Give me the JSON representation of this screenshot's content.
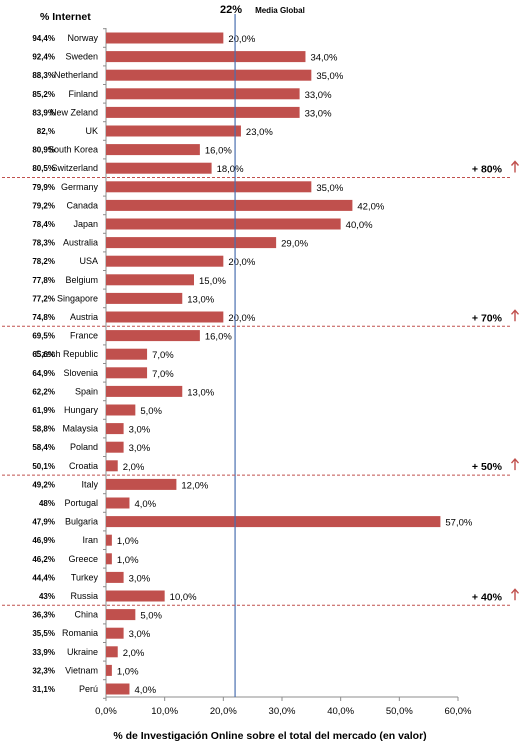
{
  "chart_data": {
    "type": "bar",
    "orientation": "horizontal",
    "header_label": "% Internet",
    "xlabel": "% de Investigación Online sobre el total del mercado (en valor)",
    "xlim": [
      0,
      60
    ],
    "x_ticks": [
      "0,0%",
      "10,0%",
      "20,0%",
      "30,0%",
      "40,0%",
      "50,0%",
      "60,0%"
    ],
    "reference_line": {
      "value": 22,
      "label_value": "22%",
      "label": "Media Global"
    },
    "bar_color": "#c0504d",
    "reference_color": "#4a6fb0",
    "separator_color": "#c0504d",
    "rows": [
      {
        "internet": "94,4%",
        "country": "Norway",
        "value": 20,
        "label": "20,0%"
      },
      {
        "internet": "92,4%",
        "country": "Sweden",
        "value": 34,
        "label": "34,0%"
      },
      {
        "internet": "88,3%",
        "country": "Netherland",
        "value": 35,
        "label": "35,0%"
      },
      {
        "internet": "85,2%",
        "country": "Finland",
        "value": 33,
        "label": "33,0%"
      },
      {
        "internet": "83,9%",
        "country": "New Zeland",
        "value": 33,
        "label": "33,0%"
      },
      {
        "internet": "82,%",
        "country": "UK",
        "value": 23,
        "label": "23,0%"
      },
      {
        "internet": "80,9%",
        "country": "South Korea",
        "value": 16,
        "label": "16,0%"
      },
      {
        "internet": "80,5%",
        "country": "Switzerland",
        "value": 18,
        "label": "18,0%"
      },
      {
        "internet": "79,9%",
        "country": "Germany",
        "value": 35,
        "label": "35,0%"
      },
      {
        "internet": "79,2%",
        "country": "Canada",
        "value": 42,
        "label": "42,0%"
      },
      {
        "internet": "78,4%",
        "country": "Japan",
        "value": 40,
        "label": "40,0%"
      },
      {
        "internet": "78,3%",
        "country": "Australia",
        "value": 29,
        "label": "29,0%"
      },
      {
        "internet": "78,2%",
        "country": "USA",
        "value": 20,
        "label": "20,0%"
      },
      {
        "internet": "77,8%",
        "country": "Belgium",
        "value": 15,
        "label": "15,0%"
      },
      {
        "internet": "77,2%",
        "country": "Singapore",
        "value": 13,
        "label": "13,0%"
      },
      {
        "internet": "74,8%",
        "country": "Austria",
        "value": 20,
        "label": "20,0%"
      },
      {
        "internet": "69,5%",
        "country": "France",
        "value": 16,
        "label": "16,0%"
      },
      {
        "internet": "65,6%",
        "country": "Czech Republic",
        "value": 7,
        "label": "7,0%"
      },
      {
        "internet": "64,9%",
        "country": "Slovenia",
        "value": 7,
        "label": "7,0%"
      },
      {
        "internet": "62,2%",
        "country": "Spain",
        "value": 13,
        "label": "13,0%"
      },
      {
        "internet": "61,9%",
        "country": "Hungary",
        "value": 5,
        "label": "5,0%"
      },
      {
        "internet": "58,8%",
        "country": "Malaysia",
        "value": 3,
        "label": "3,0%"
      },
      {
        "internet": "58,4%",
        "country": "Poland",
        "value": 3,
        "label": "3,0%"
      },
      {
        "internet": "50,1%",
        "country": "Croatia",
        "value": 2,
        "label": "2,0%"
      },
      {
        "internet": "49,2%",
        "country": "Italy",
        "value": 12,
        "label": "12,0%"
      },
      {
        "internet": "48%",
        "country": "Portugal",
        "value": 4,
        "label": "4,0%"
      },
      {
        "internet": "47,9%",
        "country": "Bulgaria",
        "value": 57,
        "label": "57,0%"
      },
      {
        "internet": "46,9%",
        "country": "Iran",
        "value": 1,
        "label": "1,0%"
      },
      {
        "internet": "46,2%",
        "country": "Greece",
        "value": 1,
        "label": "1,0%"
      },
      {
        "internet": "44,4%",
        "country": "Turkey",
        "value": 3,
        "label": "3,0%"
      },
      {
        "internet": "43%",
        "country": "Russia",
        "value": 10,
        "label": "10,0%"
      },
      {
        "internet": "36,3%",
        "country": "China",
        "value": 5,
        "label": "5,0%"
      },
      {
        "internet": "35,5%",
        "country": "Romania",
        "value": 3,
        "label": "3,0%"
      },
      {
        "internet": "33,9%",
        "country": "Ukraine",
        "value": 2,
        "label": "2,0%"
      },
      {
        "internet": "32,3%",
        "country": "Vietnam",
        "value": 1,
        "label": "1,0%"
      },
      {
        "internet": "31,1%",
        "country": "Perú",
        "value": 4,
        "label": "4,0%"
      }
    ],
    "groups": [
      {
        "label": "+ 80%",
        "after_country": "Switzerland"
      },
      {
        "label": "+ 70%",
        "after_country": "Austria"
      },
      {
        "label": "+ 50%",
        "after_country": "Croatia"
      },
      {
        "label": "+ 40%",
        "after_country": "Russia"
      }
    ]
  }
}
